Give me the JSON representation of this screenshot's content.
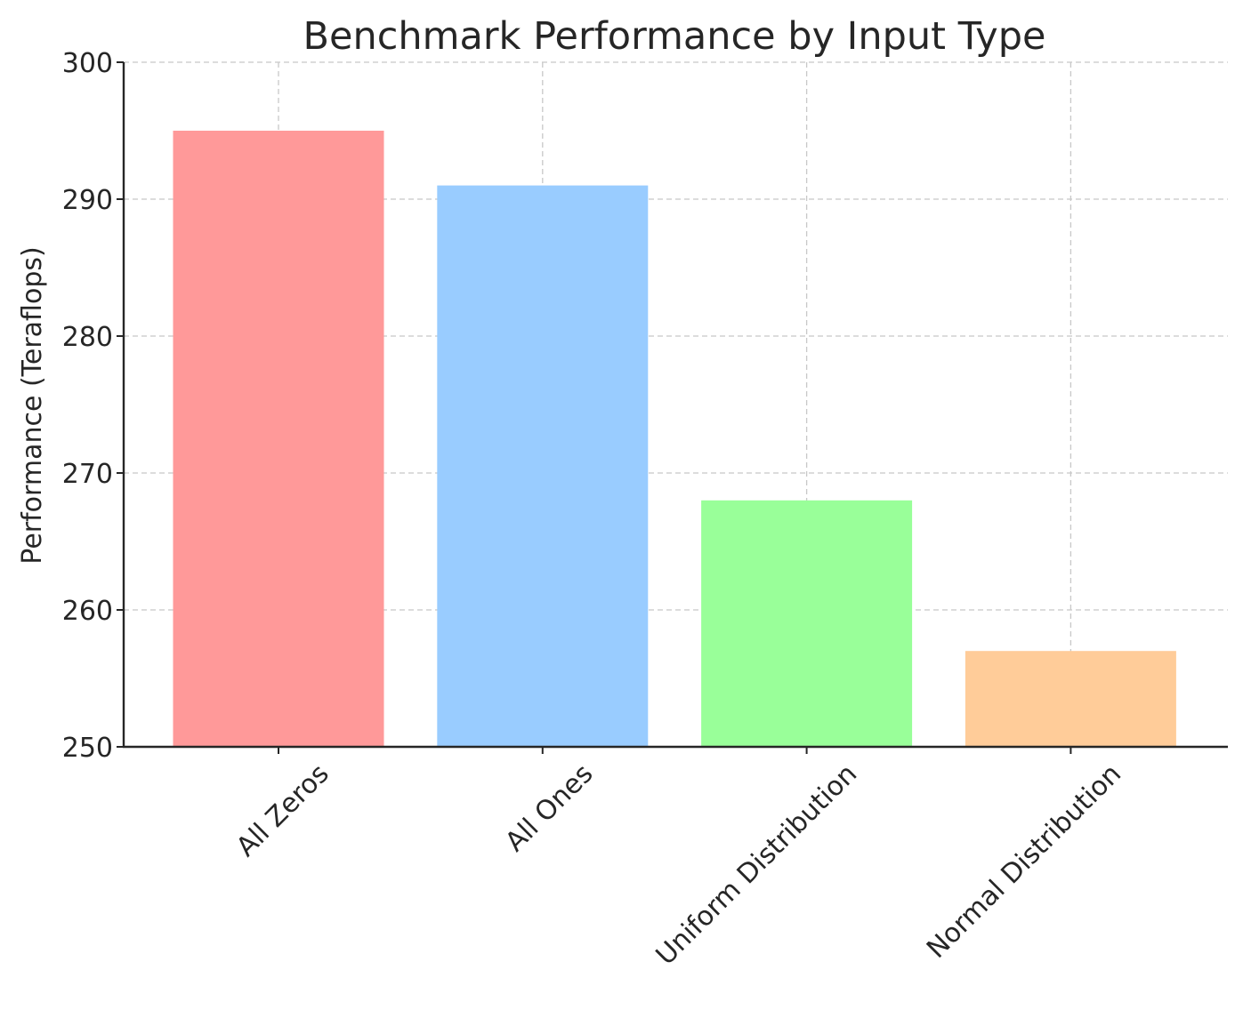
{
  "chart_data": {
    "type": "bar",
    "title": "Benchmark Performance by Input Type",
    "xlabel": "",
    "ylabel": "Performance (Teraflops)",
    "categories": [
      "All Zeros",
      "All Ones",
      "Uniform Distribution",
      "Normal Distribution"
    ],
    "values": [
      295,
      291,
      268,
      257
    ],
    "colors": [
      "#ff9999",
      "#99ccff",
      "#99ff99",
      "#ffcc99"
    ],
    "ylim": [
      250,
      300
    ],
    "yticks": [
      250,
      260,
      270,
      280,
      290,
      300
    ],
    "grid": true,
    "legend": "none"
  }
}
